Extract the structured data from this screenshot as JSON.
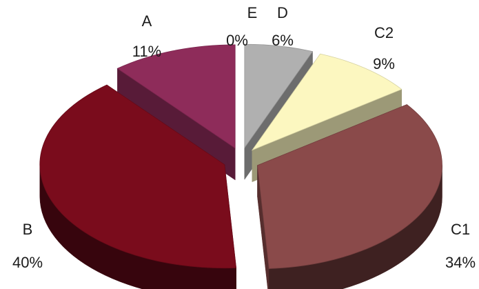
{
  "chart_data": {
    "type": "pie",
    "style": "3d-exploded",
    "start_angle_deg": 0,
    "direction": "clockwise",
    "slices": [
      {
        "name": "E",
        "value": 0,
        "label": "0%",
        "color": "#9a9a9a"
      },
      {
        "name": "D",
        "value": 6,
        "label": "6%",
        "color": "#b0b0b0"
      },
      {
        "name": "C2",
        "value": 9,
        "label": "9%",
        "color": "#fcf7c0"
      },
      {
        "name": "C1",
        "value": 34,
        "label": "34%",
        "color": "#8a4a4a"
      },
      {
        "name": "B",
        "value": 40,
        "label": "40%",
        "color": "#7a0c1c"
      },
      {
        "name": "A",
        "value": 11,
        "label": "11%",
        "color": "#8e2c5a"
      }
    ]
  }
}
